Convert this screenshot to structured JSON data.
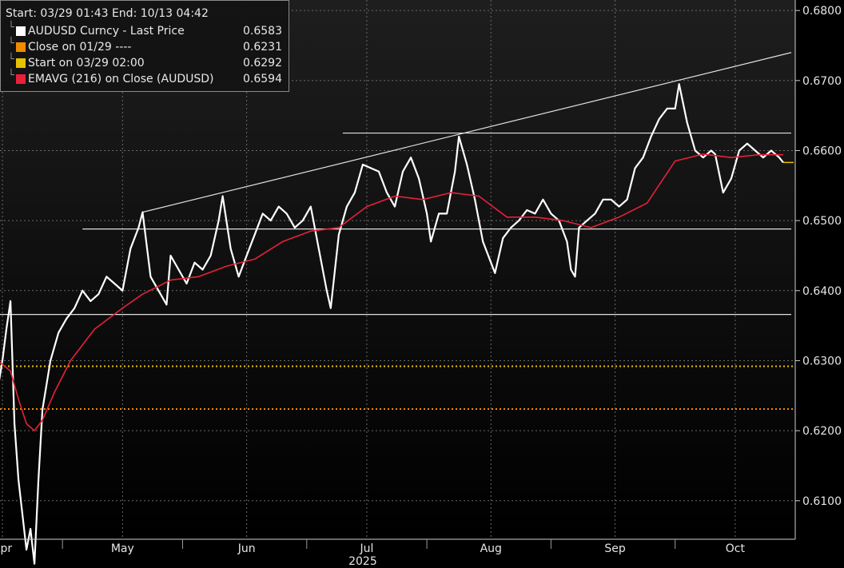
{
  "legend": {
    "header": "Start: 03/29 01:43 End: 10/13 04:42",
    "items": [
      {
        "label": "AUDUSD Curncy - Last Price",
        "value": "0.6583",
        "color": "#ffffff"
      },
      {
        "label": "Close on 01/29 ----",
        "value": "0.6231",
        "color": "#f08c00"
      },
      {
        "label": "Start on 03/29 02:00",
        "value": "0.6292",
        "color": "#e6c200"
      },
      {
        "label": "EMAVG (216)  on Close (AUDUSD)",
        "value": "0.6594",
        "color": "#e8203a"
      }
    ]
  },
  "chart_data": {
    "type": "line",
    "title": "",
    "xlabel": "2025",
    "ylabel": "",
    "ylim": [
      0.6045,
      0.6815
    ],
    "yticks": [
      "0.6100",
      "0.6200",
      "0.6300",
      "0.6400",
      "0.6500",
      "0.6600",
      "0.6700",
      "0.6800"
    ],
    "xticks": [
      "Apr",
      "May",
      "Jun",
      "Jul",
      "Aug",
      "Sep",
      "Oct"
    ],
    "xtick_dates": [
      "2025-04-01",
      "2025-05-01",
      "2025-06-01",
      "2025-07-01",
      "2025-08-01",
      "2025-09-01",
      "2025-10-01"
    ],
    "xlim": [
      "2025-03-29",
      "2025-10-15"
    ],
    "grid": true,
    "series": [
      {
        "name": "AUDUSD Curncy - Last Price",
        "color": "#ffffff",
        "points": [
          [
            "2025-03-29",
            0.6292
          ],
          [
            "2025-03-31",
            0.6265
          ],
          [
            "2025-04-01",
            0.63
          ],
          [
            "2025-04-02",
            0.6345
          ],
          [
            "2025-04-03",
            0.6385
          ],
          [
            "2025-04-04",
            0.621
          ],
          [
            "2025-04-05",
            0.613
          ],
          [
            "2025-04-06",
            0.608
          ],
          [
            "2025-04-07",
            0.603
          ],
          [
            "2025-04-08",
            0.606
          ],
          [
            "2025-04-09",
            0.601
          ],
          [
            "2025-04-10",
            0.613
          ],
          [
            "2025-04-11",
            0.623
          ],
          [
            "2025-04-13",
            0.63
          ],
          [
            "2025-04-15",
            0.634
          ],
          [
            "2025-04-17",
            0.636
          ],
          [
            "2025-04-19",
            0.6375
          ],
          [
            "2025-04-21",
            0.64
          ],
          [
            "2025-04-23",
            0.6385
          ],
          [
            "2025-04-25",
            0.6395
          ],
          [
            "2025-04-27",
            0.642
          ],
          [
            "2025-04-29",
            0.641
          ],
          [
            "2025-05-01",
            0.64
          ],
          [
            "2025-05-03",
            0.646
          ],
          [
            "2025-05-05",
            0.649
          ],
          [
            "2025-05-06",
            0.6512
          ],
          [
            "2025-05-08",
            0.642
          ],
          [
            "2025-05-10",
            0.64
          ],
          [
            "2025-05-12",
            0.638
          ],
          [
            "2025-05-13",
            0.645
          ],
          [
            "2025-05-15",
            0.643
          ],
          [
            "2025-05-17",
            0.641
          ],
          [
            "2025-05-19",
            0.644
          ],
          [
            "2025-05-21",
            0.643
          ],
          [
            "2025-05-23",
            0.645
          ],
          [
            "2025-05-25",
            0.65
          ],
          [
            "2025-05-26",
            0.6535
          ],
          [
            "2025-05-28",
            0.646
          ],
          [
            "2025-05-30",
            0.642
          ],
          [
            "2025-06-01",
            0.645
          ],
          [
            "2025-06-03",
            0.648
          ],
          [
            "2025-06-05",
            0.651
          ],
          [
            "2025-06-07",
            0.65
          ],
          [
            "2025-06-09",
            0.652
          ],
          [
            "2025-06-11",
            0.651
          ],
          [
            "2025-06-13",
            0.649
          ],
          [
            "2025-06-15",
            0.65
          ],
          [
            "2025-06-17",
            0.652
          ],
          [
            "2025-06-19",
            0.646
          ],
          [
            "2025-06-21",
            0.64
          ],
          [
            "2025-06-22",
            0.6375
          ],
          [
            "2025-06-24",
            0.648
          ],
          [
            "2025-06-26",
            0.652
          ],
          [
            "2025-06-28",
            0.654
          ],
          [
            "2025-06-30",
            0.658
          ],
          [
            "2025-07-02",
            0.6575
          ],
          [
            "2025-07-04",
            0.657
          ],
          [
            "2025-07-06",
            0.654
          ],
          [
            "2025-07-08",
            0.652
          ],
          [
            "2025-07-10",
            0.657
          ],
          [
            "2025-07-12",
            0.659
          ],
          [
            "2025-07-14",
            0.656
          ],
          [
            "2025-07-16",
            0.651
          ],
          [
            "2025-07-17",
            0.647
          ],
          [
            "2025-07-19",
            0.651
          ],
          [
            "2025-07-21",
            0.651
          ],
          [
            "2025-07-23",
            0.657
          ],
          [
            "2025-07-24",
            0.662
          ],
          [
            "2025-07-26",
            0.658
          ],
          [
            "2025-07-28",
            0.653
          ],
          [
            "2025-07-30",
            0.647
          ],
          [
            "2025-08-01",
            0.644
          ],
          [
            "2025-08-02",
            0.6425
          ],
          [
            "2025-08-04",
            0.6475
          ],
          [
            "2025-08-06",
            0.649
          ],
          [
            "2025-08-08",
            0.65
          ],
          [
            "2025-08-10",
            0.6515
          ],
          [
            "2025-08-12",
            0.651
          ],
          [
            "2025-08-14",
            0.653
          ],
          [
            "2025-08-16",
            0.651
          ],
          [
            "2025-08-18",
            0.65
          ],
          [
            "2025-08-20",
            0.647
          ],
          [
            "2025-08-21",
            0.643
          ],
          [
            "2025-08-22",
            0.642
          ],
          [
            "2025-08-23",
            0.649
          ],
          [
            "2025-08-25",
            0.65
          ],
          [
            "2025-08-27",
            0.651
          ],
          [
            "2025-08-29",
            0.653
          ],
          [
            "2025-08-31",
            0.653
          ],
          [
            "2025-09-02",
            0.652
          ],
          [
            "2025-09-04",
            0.653
          ],
          [
            "2025-09-06",
            0.6575
          ],
          [
            "2025-09-08",
            0.659
          ],
          [
            "2025-09-10",
            0.662
          ],
          [
            "2025-09-12",
            0.6645
          ],
          [
            "2025-09-14",
            0.666
          ],
          [
            "2025-09-16",
            0.666
          ],
          [
            "2025-09-17",
            0.6695
          ],
          [
            "2025-09-19",
            0.664
          ],
          [
            "2025-09-21",
            0.66
          ],
          [
            "2025-09-23",
            0.659
          ],
          [
            "2025-09-25",
            0.66
          ],
          [
            "2025-09-26",
            0.6595
          ],
          [
            "2025-09-28",
            0.654
          ],
          [
            "2025-09-30",
            0.656
          ],
          [
            "2025-10-02",
            0.66
          ],
          [
            "2025-10-04",
            0.661
          ],
          [
            "2025-10-06",
            0.66
          ],
          [
            "2025-10-08",
            0.659
          ],
          [
            "2025-10-10",
            0.66
          ],
          [
            "2025-10-12",
            0.659
          ],
          [
            "2025-10-13",
            0.6583
          ]
        ]
      },
      {
        "name": "EMAVG (216)  on Close (AUDUSD)",
        "color": "#e8203a",
        "points": [
          [
            "2025-03-29",
            0.6305
          ],
          [
            "2025-04-01",
            0.6295
          ],
          [
            "2025-04-03",
            0.6285
          ],
          [
            "2025-04-05",
            0.6245
          ],
          [
            "2025-04-07",
            0.621
          ],
          [
            "2025-04-09",
            0.62
          ],
          [
            "2025-04-11",
            0.6215
          ],
          [
            "2025-04-14",
            0.6255
          ],
          [
            "2025-04-18",
            0.63
          ],
          [
            "2025-04-24",
            0.6345
          ],
          [
            "2025-05-01",
            0.6375
          ],
          [
            "2025-05-06",
            0.6395
          ],
          [
            "2025-05-13",
            0.6415
          ],
          [
            "2025-05-20",
            0.642
          ],
          [
            "2025-05-27",
            0.6435
          ],
          [
            "2025-06-03",
            0.6445
          ],
          [
            "2025-06-10",
            0.647
          ],
          [
            "2025-06-17",
            0.6485
          ],
          [
            "2025-06-24",
            0.649
          ],
          [
            "2025-07-01",
            0.652
          ],
          [
            "2025-07-08",
            0.6535
          ],
          [
            "2025-07-15",
            0.653
          ],
          [
            "2025-07-22",
            0.654
          ],
          [
            "2025-07-29",
            0.6535
          ],
          [
            "2025-08-05",
            0.6505
          ],
          [
            "2025-08-12",
            0.6505
          ],
          [
            "2025-08-19",
            0.65
          ],
          [
            "2025-08-26",
            0.649
          ],
          [
            "2025-09-02",
            0.6505
          ],
          [
            "2025-09-09",
            0.6525
          ],
          [
            "2025-09-16",
            0.6585
          ],
          [
            "2025-09-23",
            0.6595
          ],
          [
            "2025-09-30",
            0.659
          ],
          [
            "2025-10-07",
            0.6594
          ],
          [
            "2025-10-13",
            0.6594
          ]
        ]
      }
    ],
    "reference_lines": [
      {
        "name": "Close on 01/29 ----",
        "value": 0.6231,
        "color": "#f08c00",
        "style": "dotted"
      },
      {
        "name": "Start on 03/29 02:00",
        "value": 0.6292,
        "color": "#e6c200",
        "style": "dotted"
      }
    ],
    "trend_lines": [
      {
        "from": [
          "2025-05-06",
          0.6512
        ],
        "to": [
          "2025-10-15",
          0.674
        ]
      },
      {
        "from": [
          "2025-04-21",
          0.6488
        ],
        "to": [
          "2025-10-15",
          0.6488
        ]
      },
      {
        "from": [
          "2025-03-29",
          0.6366
        ],
        "to": [
          "2025-10-15",
          0.6366
        ]
      },
      {
        "from": [
          "2025-06-25",
          0.6625
        ],
        "to": [
          "2025-10-15",
          0.6625
        ]
      }
    ],
    "last_price_marker": {
      "value": 0.6583,
      "color": "#e6c200"
    }
  }
}
